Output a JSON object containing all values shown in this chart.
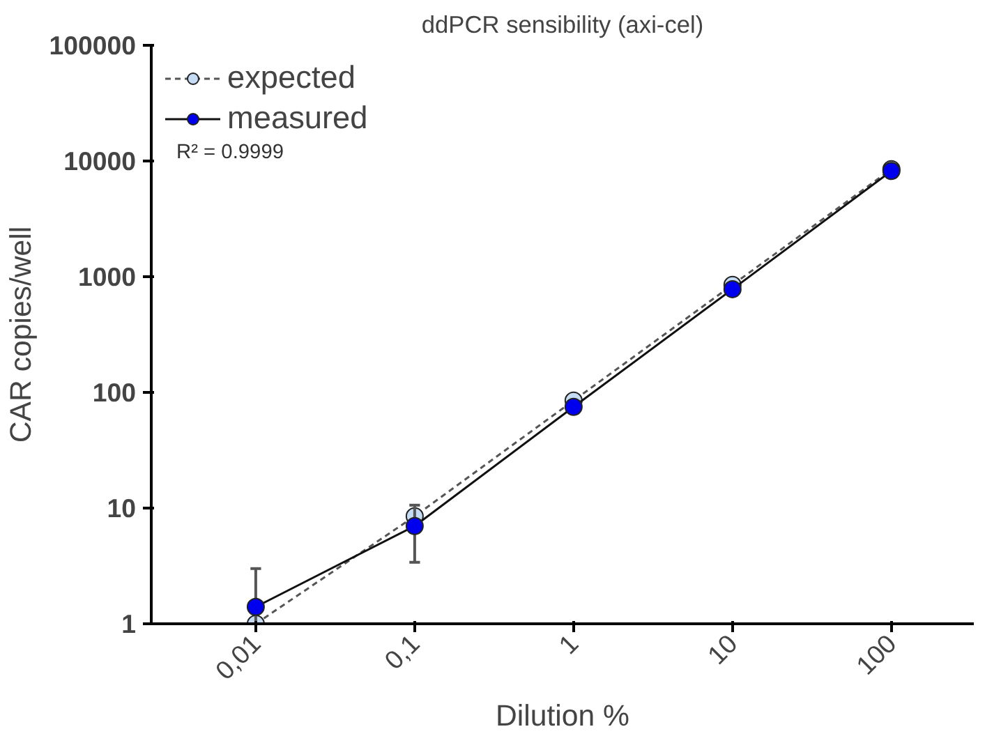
{
  "chart_data": {
    "type": "line",
    "title": "ddPCR sensibility (axi-cel)",
    "xlabel": "Dilution %",
    "ylabel": "CAR copies/well",
    "x": [
      0.01,
      0.1,
      1,
      10,
      100
    ],
    "series": [
      {
        "name": "expected",
        "color": "#c6dcf5",
        "values": [
          1,
          8.5,
          85,
          850,
          8500
        ],
        "line_style": "dashed"
      },
      {
        "name": "measured",
        "color": "#0000ee",
        "values": [
          1.4,
          7,
          75,
          780,
          8200
        ],
        "line_style": "solid",
        "errors": [
          [
            1,
            3
          ],
          [
            3.4,
            10.6
          ],
          null,
          null,
          null
        ]
      }
    ],
    "log": "xy",
    "xlim": [
      0.0022,
      330
    ],
    "ylim": [
      1,
      100000
    ],
    "xticks": [
      {
        "value": 0.01,
        "label": "0,01"
      },
      {
        "value": 0.1,
        "label": "0,1"
      },
      1,
      10,
      100
    ],
    "yticks": [
      1,
      10,
      100,
      1000,
      10000,
      100000
    ],
    "grid": false,
    "legend": "top left",
    "marker": "circle",
    "annotations": [
      "R² = 0.9999"
    ]
  }
}
